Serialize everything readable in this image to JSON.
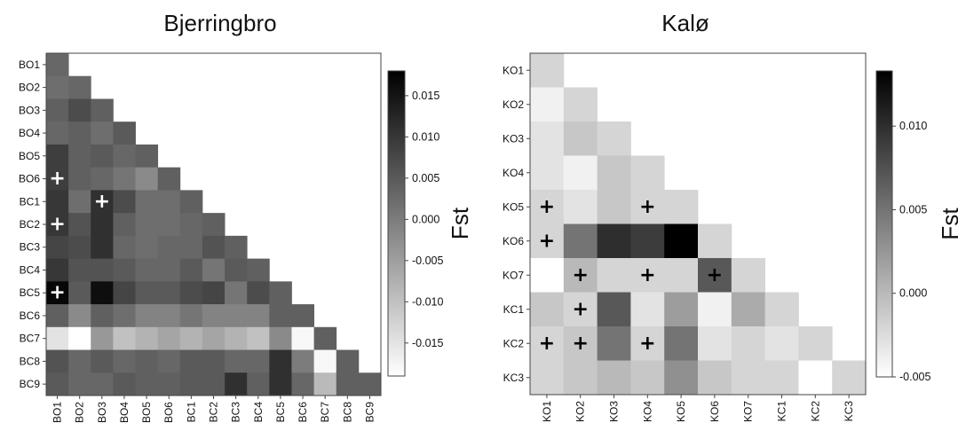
{
  "chart_data": [
    {
      "type": "heatmap",
      "title": "Bjerringbro",
      "labels": [
        "BO1",
        "BO2",
        "BO3",
        "BO4",
        "BO5",
        "BO6",
        "BC1",
        "BC2",
        "BC3",
        "BC4",
        "BC5",
        "BC6",
        "BC7",
        "BC8",
        "BC9"
      ],
      "colorbar": {
        "label": "Fst",
        "range": [
          -0.019,
          0.018
        ],
        "ticks": [
          0.015,
          0.01,
          0.005,
          0.0,
          -0.005,
          -0.01,
          -0.015
        ],
        "tick_labels": [
          "0.015",
          "0.010",
          "0.005",
          "0.000",
          "-0.005",
          "-0.010",
          "-0.015"
        ]
      },
      "matrix": [
        [
          0.003
        ],
        [
          0.002,
          0.003
        ],
        [
          0.004,
          0.007,
          0.004
        ],
        [
          0.003,
          0.004,
          0.002,
          0.005
        ],
        [
          0.009,
          0.004,
          0.005,
          0.003,
          0.004
        ],
        [
          0.009,
          0.004,
          0.003,
          0.001,
          -0.002,
          0.004
        ],
        [
          0.01,
          0.002,
          0.011,
          0.007,
          0.002,
          0.002,
          0.004
        ],
        [
          0.01,
          0.006,
          0.011,
          0.004,
          0.002,
          0.002,
          0.003,
          0.004
        ],
        [
          0.008,
          0.007,
          0.011,
          0.003,
          0.002,
          0.003,
          0.003,
          0.006,
          0.004
        ],
        [
          0.01,
          0.006,
          0.006,
          0.005,
          0.003,
          0.003,
          0.005,
          0.001,
          0.005,
          0.004
        ],
        [
          0.017,
          0.005,
          0.016,
          0.008,
          0.005,
          0.005,
          0.007,
          0.008,
          0.001,
          0.007,
          0.004
        ],
        [
          0.004,
          -0.002,
          0.004,
          0.002,
          -0.001,
          -0.001,
          0.001,
          -0.001,
          -0.001,
          -0.001,
          0.004,
          0.004
        ],
        [
          -0.015,
          -0.019,
          -0.004,
          -0.01,
          -0.008,
          -0.006,
          -0.008,
          -0.006,
          -0.008,
          -0.01,
          -0.002,
          -0.018,
          0.004
        ],
        [
          0.006,
          0.003,
          0.005,
          0.003,
          0.004,
          0.003,
          0.005,
          0.005,
          0.003,
          0.003,
          0.011,
          0.0,
          -0.018,
          0.004
        ],
        [
          0.005,
          0.003,
          0.003,
          0.005,
          0.004,
          0.004,
          0.005,
          0.005,
          0.011,
          0.004,
          0.011,
          0.003,
          -0.009,
          0.004,
          0.004
        ]
      ],
      "significant": [
        [
          5,
          0
        ],
        [
          6,
          2
        ],
        [
          7,
          0
        ],
        [
          10,
          0
        ]
      ],
      "marker_symbol": "+",
      "marker_color": "#ffffff"
    },
    {
      "type": "heatmap",
      "title": "Kalø",
      "labels": [
        "KO1",
        "KO2",
        "KO3",
        "KO4",
        "KO5",
        "KO6",
        "KO7",
        "KC1",
        "KC2",
        "KC3"
      ],
      "colorbar": {
        "label": "Fst",
        "range": [
          -0.005,
          0.0133
        ],
        "ticks": [
          0.01,
          0.005,
          0.0,
          -0.005
        ],
        "tick_labels": [
          "0.010",
          "0.005",
          "0.000",
          "-0.005"
        ]
      },
      "matrix": [
        [
          -0.002
        ],
        [
          -0.004,
          -0.002
        ],
        [
          -0.003,
          -0.001,
          -0.002
        ],
        [
          -0.003,
          -0.004,
          -0.001,
          -0.002
        ],
        [
          -0.002,
          -0.003,
          -0.001,
          -0.002,
          -0.002
        ],
        [
          -0.002,
          0.005,
          0.01,
          0.009,
          0.0133,
          -0.002
        ],
        [
          -0.005,
          0.0,
          -0.002,
          -0.002,
          -0.002,
          0.007,
          -0.002
        ],
        [
          -0.001,
          -0.002,
          0.007,
          -0.003,
          0.002,
          -0.004,
          0.001,
          -0.002
        ],
        [
          -0.002,
          -0.001,
          0.005,
          -0.002,
          0.005,
          -0.003,
          -0.002,
          -0.003,
          -0.002
        ],
        [
          -0.002,
          -0.001,
          0.0,
          -0.001,
          0.003,
          -0.001,
          -0.002,
          -0.002,
          -0.005,
          -0.002
        ]
      ],
      "significant": [
        [
          4,
          0
        ],
        [
          4,
          3
        ],
        [
          5,
          0
        ],
        [
          6,
          1
        ],
        [
          6,
          3
        ],
        [
          6,
          5
        ],
        [
          7,
          1
        ],
        [
          8,
          0
        ],
        [
          8,
          1
        ],
        [
          8,
          3
        ]
      ],
      "marker_symbol": "+",
      "marker_color": "#000000"
    }
  ]
}
